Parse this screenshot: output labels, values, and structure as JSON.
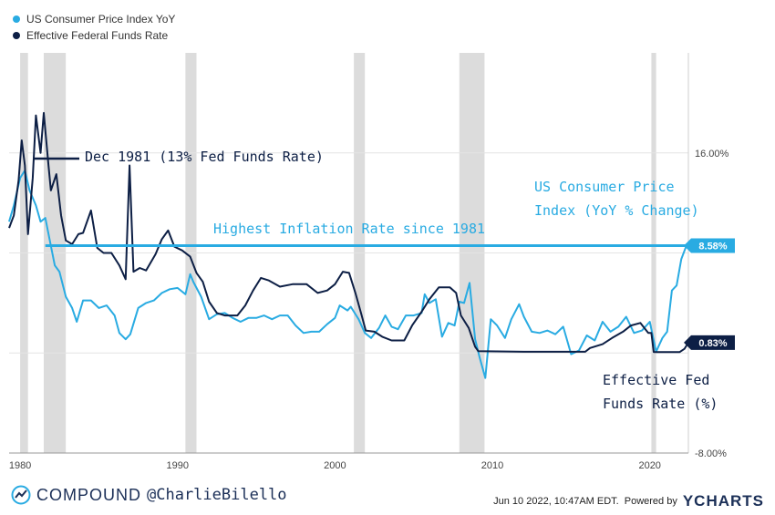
{
  "legend": [
    {
      "label": "US Consumer Price Index YoY",
      "color": "#29abe2"
    },
    {
      "label": "Effective Federal Funds Rate",
      "color": "#0d1f45"
    }
  ],
  "annotations": {
    "dec1981": "Dec 1981 (13% Fed Funds Rate)",
    "highest": "Highest Inflation Rate since 1981",
    "cpi_line1": "US Consumer Price",
    "cpi_line2": "Index (YoY % Change)",
    "fed_line1": "Effective Fed",
    "fed_line2": "Funds Rate (%)"
  },
  "footer": {
    "brand": "COMPOUND",
    "handle": "@CharlieBilello",
    "timestamp": "Jun 10 2022, 10:47AM EDT.",
    "powered_by": "Powered by",
    "ycharts": "YCHARTS"
  },
  "chart_data": {
    "type": "line",
    "x_ticks": [
      "1980",
      "1990",
      "2000",
      "2010",
      "2020"
    ],
    "y_ticks": [
      "16.00%",
      "-8.00%"
    ],
    "xlim": [
      1979.3,
      2022.45
    ],
    "ylim": [
      -8,
      24
    ],
    "recessions": [
      [
        1980.0,
        1980.5
      ],
      [
        1981.5,
        1982.9
      ],
      [
        1990.5,
        1991.2
      ],
      [
        2001.2,
        2001.9
      ],
      [
        2007.9,
        2009.5
      ],
      [
        2020.1,
        2020.4
      ]
    ],
    "reference_line": {
      "label": "Highest Inflation Rate since 1981",
      "value": 8.58
    },
    "end_labels": {
      "cpi": "8.58%",
      "fed": "0.83%"
    },
    "series": [
      {
        "name": "US Consumer Price Index YoY",
        "color": "#29abe2",
        "points": [
          [
            1979.3,
            10.5
          ],
          [
            1979.6,
            11.8
          ],
          [
            1980.0,
            14.0
          ],
          [
            1980.3,
            14.6
          ],
          [
            1980.6,
            13.0
          ],
          [
            1981.0,
            11.8
          ],
          [
            1981.3,
            10.5
          ],
          [
            1981.6,
            10.8
          ],
          [
            1981.9,
            8.9
          ],
          [
            1982.2,
            7.0
          ],
          [
            1982.5,
            6.5
          ],
          [
            1982.9,
            4.5
          ],
          [
            1983.3,
            3.6
          ],
          [
            1983.6,
            2.5
          ],
          [
            1984.0,
            4.2
          ],
          [
            1984.5,
            4.2
          ],
          [
            1985.0,
            3.6
          ],
          [
            1985.5,
            3.8
          ],
          [
            1986.0,
            3.0
          ],
          [
            1986.3,
            1.6
          ],
          [
            1986.7,
            1.1
          ],
          [
            1987.0,
            1.5
          ],
          [
            1987.5,
            3.6
          ],
          [
            1988.0,
            4.0
          ],
          [
            1988.5,
            4.2
          ],
          [
            1989.0,
            4.8
          ],
          [
            1989.5,
            5.1
          ],
          [
            1990.0,
            5.2
          ],
          [
            1990.5,
            4.7
          ],
          [
            1990.8,
            6.3
          ],
          [
            1991.0,
            5.7
          ],
          [
            1991.5,
            4.5
          ],
          [
            1992.0,
            2.7
          ],
          [
            1992.5,
            3.1
          ],
          [
            1993.0,
            3.2
          ],
          [
            1993.5,
            2.8
          ],
          [
            1994.0,
            2.5
          ],
          [
            1994.5,
            2.8
          ],
          [
            1995.0,
            2.8
          ],
          [
            1995.5,
            3.0
          ],
          [
            1996.0,
            2.7
          ],
          [
            1996.5,
            3.0
          ],
          [
            1997.0,
            3.0
          ],
          [
            1997.5,
            2.2
          ],
          [
            1998.0,
            1.6
          ],
          [
            1998.5,
            1.7
          ],
          [
            1999.0,
            1.7
          ],
          [
            1999.5,
            2.3
          ],
          [
            2000.0,
            2.8
          ],
          [
            2000.3,
            3.8
          ],
          [
            2000.8,
            3.4
          ],
          [
            2001.0,
            3.7
          ],
          [
            2001.5,
            2.7
          ],
          [
            2001.9,
            1.6
          ],
          [
            2002.3,
            1.2
          ],
          [
            2002.8,
            2.0
          ],
          [
            2003.2,
            3.0
          ],
          [
            2003.6,
            2.1
          ],
          [
            2004.0,
            1.9
          ],
          [
            2004.5,
            3.0
          ],
          [
            2005.0,
            3.0
          ],
          [
            2005.5,
            3.2
          ],
          [
            2005.7,
            4.7
          ],
          [
            2006.0,
            4.0
          ],
          [
            2006.4,
            4.3
          ],
          [
            2006.8,
            1.3
          ],
          [
            2007.2,
            2.4
          ],
          [
            2007.6,
            2.2
          ],
          [
            2007.9,
            4.1
          ],
          [
            2008.2,
            4.0
          ],
          [
            2008.55,
            5.6
          ],
          [
            2008.9,
            1.1
          ],
          [
            2009.2,
            -0.4
          ],
          [
            2009.55,
            -2.0
          ],
          [
            2009.9,
            2.7
          ],
          [
            2010.3,
            2.2
          ],
          [
            2010.8,
            1.2
          ],
          [
            2011.2,
            2.7
          ],
          [
            2011.7,
            3.9
          ],
          [
            2012.0,
            2.9
          ],
          [
            2012.5,
            1.7
          ],
          [
            2013.0,
            1.6
          ],
          [
            2013.5,
            1.8
          ],
          [
            2014.0,
            1.5
          ],
          [
            2014.5,
            2.1
          ],
          [
            2015.0,
            -0.1
          ],
          [
            2015.5,
            0.2
          ],
          [
            2016.0,
            1.4
          ],
          [
            2016.5,
            1.0
          ],
          [
            2017.0,
            2.5
          ],
          [
            2017.5,
            1.7
          ],
          [
            2018.0,
            2.1
          ],
          [
            2018.5,
            2.9
          ],
          [
            2019.0,
            1.6
          ],
          [
            2019.5,
            1.8
          ],
          [
            2020.0,
            2.5
          ],
          [
            2020.4,
            0.1
          ],
          [
            2020.8,
            1.2
          ],
          [
            2021.1,
            1.7
          ],
          [
            2021.4,
            5.0
          ],
          [
            2021.7,
            5.4
          ],
          [
            2022.0,
            7.5
          ],
          [
            2022.3,
            8.5
          ],
          [
            2022.45,
            8.58
          ]
        ]
      },
      {
        "name": "Effective Federal Funds Rate",
        "color": "#0d1f45",
        "points": [
          [
            1979.3,
            10.0
          ],
          [
            1979.6,
            11.0
          ],
          [
            1979.9,
            13.8
          ],
          [
            1980.1,
            17.0
          ],
          [
            1980.3,
            15.0
          ],
          [
            1980.5,
            9.5
          ],
          [
            1980.8,
            14.0
          ],
          [
            1981.0,
            19.0
          ],
          [
            1981.3,
            16.0
          ],
          [
            1981.5,
            19.2
          ],
          [
            1981.8,
            15.0
          ],
          [
            1981.95,
            13.0
          ],
          [
            1982.3,
            14.3
          ],
          [
            1982.6,
            11.0
          ],
          [
            1982.9,
            9.0
          ],
          [
            1983.3,
            8.7
          ],
          [
            1983.7,
            9.5
          ],
          [
            1984.0,
            9.6
          ],
          [
            1984.5,
            11.4
          ],
          [
            1984.9,
            8.4
          ],
          [
            1985.3,
            8.0
          ],
          [
            1985.8,
            8.0
          ],
          [
            1986.3,
            7.0
          ],
          [
            1986.7,
            5.9
          ],
          [
            1986.95,
            15.0
          ],
          [
            1987.2,
            6.5
          ],
          [
            1987.6,
            6.8
          ],
          [
            1988.0,
            6.6
          ],
          [
            1988.6,
            7.9
          ],
          [
            1989.0,
            9.1
          ],
          [
            1989.4,
            9.8
          ],
          [
            1989.8,
            8.5
          ],
          [
            1990.3,
            8.2
          ],
          [
            1990.8,
            7.7
          ],
          [
            1991.2,
            6.4
          ],
          [
            1991.6,
            5.7
          ],
          [
            1992.0,
            4.1
          ],
          [
            1992.5,
            3.2
          ],
          [
            1993.0,
            3.0
          ],
          [
            1993.8,
            3.0
          ],
          [
            1994.3,
            3.8
          ],
          [
            1994.8,
            5.0
          ],
          [
            1995.3,
            6.0
          ],
          [
            1995.8,
            5.8
          ],
          [
            1996.5,
            5.3
          ],
          [
            1997.3,
            5.5
          ],
          [
            1998.2,
            5.5
          ],
          [
            1998.9,
            4.8
          ],
          [
            1999.5,
            5.0
          ],
          [
            2000.0,
            5.5
          ],
          [
            2000.5,
            6.5
          ],
          [
            2000.9,
            6.4
          ],
          [
            2001.3,
            4.8
          ],
          [
            2001.7,
            3.0
          ],
          [
            2001.95,
            1.8
          ],
          [
            2002.5,
            1.7
          ],
          [
            2003.0,
            1.3
          ],
          [
            2003.6,
            1.0
          ],
          [
            2004.4,
            1.0
          ],
          [
            2004.9,
            2.2
          ],
          [
            2005.5,
            3.3
          ],
          [
            2006.0,
            4.3
          ],
          [
            2006.6,
            5.25
          ],
          [
            2007.3,
            5.25
          ],
          [
            2007.7,
            4.8
          ],
          [
            2008.0,
            3.0
          ],
          [
            2008.5,
            2.0
          ],
          [
            2008.9,
            0.5
          ],
          [
            2009.1,
            0.15
          ],
          [
            2012.0,
            0.1
          ],
          [
            2015.9,
            0.1
          ],
          [
            2016.2,
            0.4
          ],
          [
            2017.0,
            0.7
          ],
          [
            2017.6,
            1.2
          ],
          [
            2018.3,
            1.7
          ],
          [
            2018.8,
            2.2
          ],
          [
            2019.4,
            2.4
          ],
          [
            2019.9,
            1.6
          ],
          [
            2020.1,
            1.6
          ],
          [
            2020.25,
            0.07
          ],
          [
            2021.0,
            0.08
          ],
          [
            2021.9,
            0.08
          ],
          [
            2022.2,
            0.33
          ],
          [
            2022.45,
            0.83
          ]
        ]
      }
    ]
  }
}
